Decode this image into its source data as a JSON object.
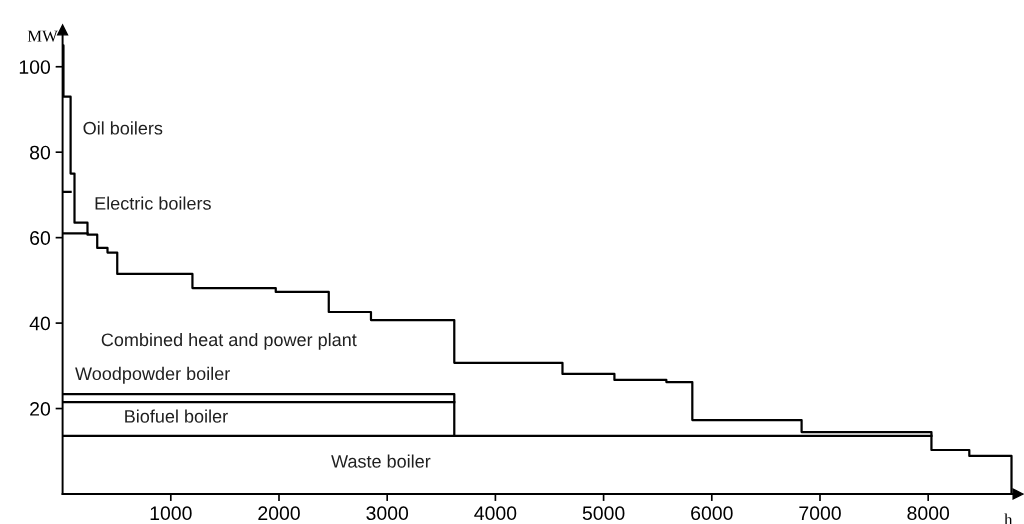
{
  "chart_data": {
    "type": "step",
    "xlabel": "h",
    "ylabel": "MW",
    "xlim": [
      0,
      8830
    ],
    "ylim": [
      0,
      108.6
    ],
    "xticks": [
      1000,
      2000,
      3000,
      4000,
      5000,
      6000,
      7000,
      8000
    ],
    "yticks": [
      20,
      40,
      60,
      80,
      100
    ],
    "grid": false,
    "legend": false,
    "marker": "none",
    "line_style": "solid",
    "series": [
      {
        "color": "#000000",
        "x": [
          0,
          8,
          74,
          110,
          230,
          320,
          415,
          505,
          1200,
          1970,
          2460,
          2850,
          3620,
          4620,
          5100,
          5580,
          5820,
          6830,
          8030,
          8380,
          8770
        ],
        "values": [
          105,
          93,
          75,
          63.5,
          60.7,
          57.6,
          56.5,
          51.5,
          48.2,
          47.3,
          42.6,
          40.7,
          30.7,
          28.1,
          26.7,
          26.2,
          17.3,
          14.5,
          10.3,
          8.9,
          0
        ]
      },
      {
        "type": "line",
        "color": "#000000",
        "x": [
          0,
          74
        ],
        "values": [
          70.7,
          70.7
        ]
      },
      {
        "type": "line",
        "color": "#000000",
        "x": [
          0,
          230
        ],
        "values": [
          61,
          61
        ]
      },
      {
        "type": "line",
        "color": "#000000",
        "x": [
          0,
          3620,
          3620
        ],
        "values": [
          23.4,
          23.4,
          13.6
        ]
      },
      {
        "type": "line",
        "color": "#000000",
        "x": [
          0,
          3620
        ],
        "values": [
          21.5,
          21.5
        ]
      },
      {
        "type": "line",
        "color": "#000000",
        "x": [
          0,
          8030
        ],
        "values": [
          13.6,
          13.6
        ]
      }
    ],
    "annotations": [
      "Oil boilers",
      "Electric boilers",
      "Combined heat and power plant",
      "Woodpowder boiler",
      "Biofuel boiler",
      "Waste boiler"
    ]
  }
}
